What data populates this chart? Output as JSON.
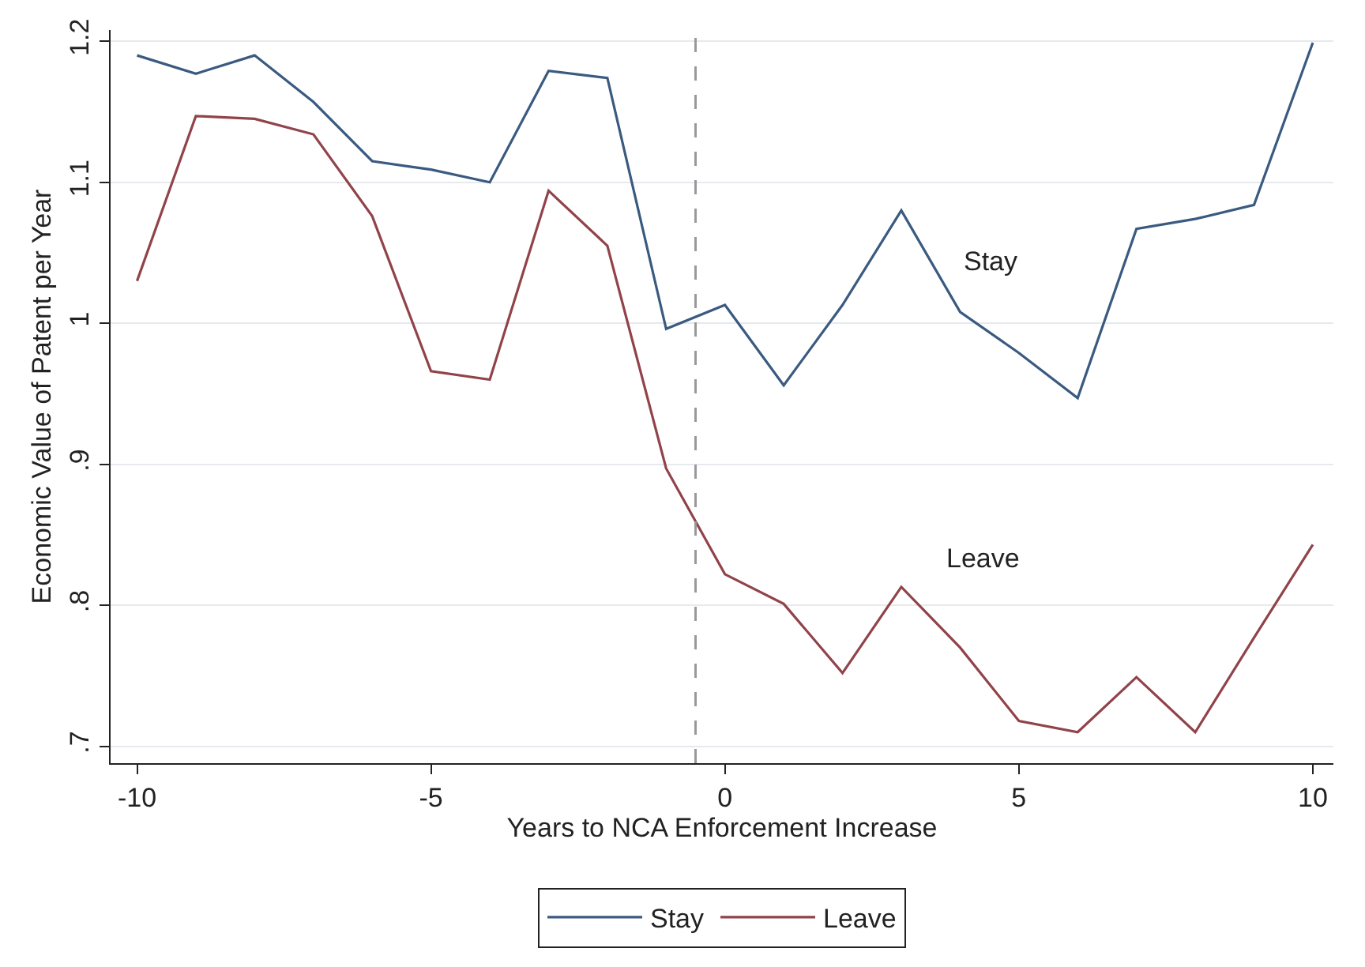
{
  "chart_data": {
    "type": "line",
    "xlabel": "Years to NCA Enforcement Increase",
    "ylabel": "Economic Value of Patent per Year",
    "x": [
      -10,
      -9,
      -8,
      -7,
      -6,
      -5,
      -4,
      -3,
      -2,
      -1,
      0,
      1,
      2,
      3,
      4,
      5,
      6,
      7,
      8,
      9,
      10
    ],
    "series": [
      {
        "name": "Stay",
        "color": "#3a5a80",
        "values": [
          1.19,
          1.177,
          1.19,
          1.157,
          1.115,
          1.109,
          1.1,
          1.179,
          1.174,
          0.996,
          1.013,
          0.956,
          1.013,
          1.08,
          1.008,
          0.979,
          0.947,
          1.067,
          1.074,
          1.084,
          1.199
        ]
      },
      {
        "name": "Leave",
        "color": "#91434a",
        "values": [
          1.03,
          1.147,
          1.145,
          1.134,
          1.076,
          0.966,
          0.96,
          1.094,
          1.055,
          0.897,
          0.822,
          0.801,
          0.752,
          0.813,
          0.77,
          0.718,
          0.71,
          0.749,
          0.71,
          0.777,
          0.843
        ]
      }
    ],
    "annotations": [
      "Stay",
      "Leave"
    ],
    "ref_lines": [
      {
        "axis": "x",
        "value": -0.5,
        "color": "#999999",
        "line_style": "dashed"
      }
    ],
    "xlim": [
      -10.45,
      10.35
    ],
    "ylim": [
      0.688,
      1.208
    ],
    "xticks": [
      -10,
      -5,
      0,
      5,
      10
    ],
    "yticks": [
      {
        "value": 0.7,
        "label": ".7"
      },
      {
        "value": 0.8,
        "label": ".8"
      },
      {
        "value": 0.9,
        "label": ".9"
      },
      1,
      1.1,
      1.2
    ],
    "grid": "y",
    "legend": "bottom",
    "line_style": "solid",
    "marker": "none"
  }
}
